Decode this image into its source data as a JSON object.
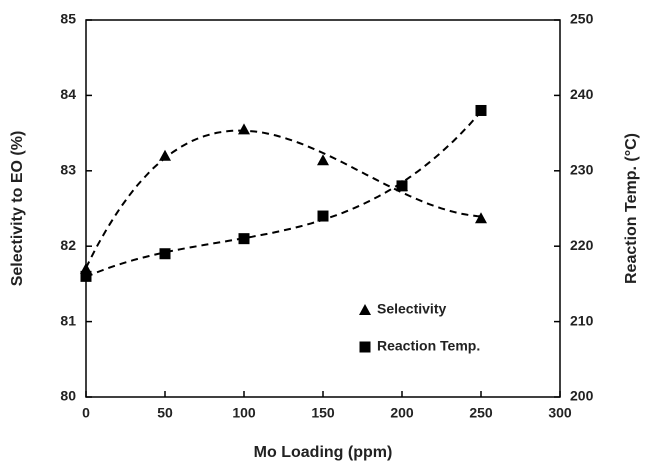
{
  "chart_data": {
    "type": "scatter",
    "x_label": "Mo Loading (ppm)",
    "y_label": "Selectivity to EO (%)",
    "y2_label": "Reaction Temp. (°C)",
    "xlim": [
      0,
      300
    ],
    "xticks": [
      0,
      50,
      100,
      150,
      200,
      250,
      300
    ],
    "ylim": [
      80,
      85
    ],
    "yticks": [
      80,
      81,
      82,
      83,
      84,
      85
    ],
    "y2lim": [
      200,
      250
    ],
    "y2ticks": [
      200,
      210,
      220,
      230,
      240,
      250
    ],
    "trendline": "dashed",
    "series": [
      {
        "name": "Selectivity",
        "color": "#000000",
        "marker": "triangle",
        "x": [
          0,
          50,
          100,
          150,
          200,
          250
        ],
        "values": [
          81.7,
          83.2,
          83.55,
          83.14,
          82.8,
          82.37
        ]
      },
      {
        "name": "Reaction Temp.",
        "color": "#000000",
        "marker": "square",
        "axis": "y2",
        "x": [
          0,
          50,
          100,
          150,
          200,
          250
        ],
        "values": [
          216,
          219,
          221,
          224,
          228,
          238
        ]
      }
    ]
  }
}
